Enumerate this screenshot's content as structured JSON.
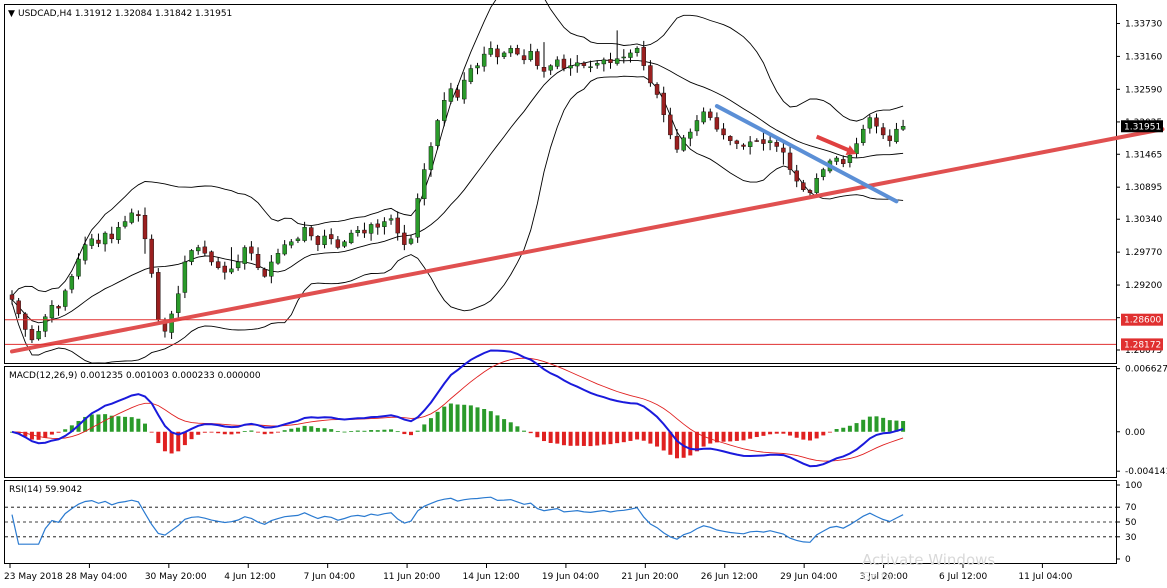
{
  "chart_data": [
    {
      "type": "candlestick",
      "title": "USDCAD,H4  1.31912 1.32084 1.31842 1.31951",
      "symbol": "USDCAD",
      "timeframe": "H4",
      "ohlc_last": {
        "open": 1.31912,
        "high": 1.32084,
        "low": 1.31842,
        "close": 1.31951
      },
      "ylim": [
        1.2785,
        1.3405
      ],
      "y_ticks": [
        "1.33730",
        "1.33160",
        "1.32590",
        "1.32025",
        "1.31465",
        "1.30895",
        "1.30340",
        "1.29770",
        "1.29200",
        "1.28635",
        "1.28075"
      ],
      "y_tick_values": [
        1.3373,
        1.3316,
        1.3259,
        1.32025,
        1.31465,
        1.30895,
        1.3034,
        1.2977,
        1.292,
        1.28635,
        1.28075
      ],
      "price_tag": "1.31951",
      "horizontal_levels": [
        {
          "value": 1.286,
          "label": "1.28600",
          "color": "#e03030"
        },
        {
          "value": 1.28172,
          "label": "1.28172",
          "color": "#e03030"
        }
      ],
      "trendlines": [
        {
          "name": "rising support",
          "color": "#e05050",
          "from": [
            0,
            1.2805
          ],
          "to": [
            173,
            1.319
          ]
        },
        {
          "name": "falling channel top",
          "color": "#5b8fd6",
          "from": [
            106,
            1.323
          ],
          "to": [
            133,
            1.3065
          ]
        }
      ],
      "arrow": {
        "color": "#e04040",
        "from": [
          121,
          1.3177
        ],
        "to": [
          127,
          1.3147
        ]
      },
      "bands_indicator": "Bollinger Bands",
      "close_series": [
        1.2895,
        1.287,
        1.2843,
        1.2825,
        1.284,
        1.2865,
        1.2885,
        1.288,
        1.291,
        1.2935,
        1.2965,
        1.299,
        1.3,
        1.2992,
        1.301,
        1.3,
        1.302,
        1.303,
        1.3045,
        1.304,
        1.3,
        1.294,
        1.286,
        1.284,
        1.287,
        1.2905,
        1.296,
        1.298,
        1.2985,
        1.2975,
        1.296,
        1.295,
        1.2942,
        1.2948,
        1.296,
        1.2985,
        1.2975,
        1.295,
        1.2935,
        1.296,
        1.2975,
        1.299,
        1.2995,
        1.3,
        1.302,
        1.3005,
        1.299,
        1.3005,
        1.3,
        1.2985,
        1.2995,
        1.301,
        1.3015,
        1.301,
        1.3025,
        1.302,
        1.303,
        1.3035,
        1.301,
        1.299,
        1.3,
        1.307,
        1.312,
        1.316,
        1.3205,
        1.324,
        1.326,
        1.3245,
        1.3275,
        1.3295,
        1.33,
        1.332,
        1.333,
        1.3315,
        1.3322,
        1.333,
        1.332,
        1.331,
        1.3325,
        1.33,
        1.329,
        1.33,
        1.331,
        1.3295,
        1.33,
        1.3305,
        1.33,
        1.3298,
        1.3304,
        1.331,
        1.3305,
        1.3312,
        1.3315,
        1.3322,
        1.333,
        1.33,
        1.327,
        1.325,
        1.3215,
        1.318,
        1.3155,
        1.3175,
        1.3185,
        1.3205,
        1.322,
        1.321,
        1.319,
        1.318,
        1.317,
        1.3165,
        1.316,
        1.3168,
        1.317,
        1.3165,
        1.317,
        1.316,
        1.315,
        1.312,
        1.31,
        1.3085,
        1.308,
        1.3105,
        1.312,
        1.3135,
        1.314,
        1.313,
        1.3145,
        1.3165,
        1.319,
        1.321,
        1.3195,
        1.318,
        1.317,
        1.319,
        1.3195
      ]
    },
    {
      "type": "macd",
      "title": "MACD(12,26,9) 0.001235 0.001003 0.000233 0.000000",
      "params": "12,26,9",
      "values": [
        0.001235,
        0.001003,
        0.000233,
        0.0
      ],
      "y_ticks": [
        "0.006627",
        "0.00",
        "-0.004141"
      ],
      "ylim": [
        -0.00475,
        0.0068
      ],
      "series": [
        {
          "name": "MACD",
          "color": "#1a1adc"
        },
        {
          "name": "Signal",
          "color": "#e02020"
        },
        {
          "name": "Histogram",
          "color": "#2a9a2a",
          "negative_color": "#e02020"
        }
      ]
    },
    {
      "type": "line",
      "title": "RSI(14) 59.9042",
      "params": "14",
      "value": 59.9042,
      "y_ticks": [
        "100",
        "70",
        "50",
        "30",
        "0"
      ],
      "levels": [
        70,
        50,
        30
      ],
      "ylim": [
        0,
        100
      ],
      "series": [
        {
          "name": "RSI",
          "color": "#2a7ad0"
        }
      ]
    }
  ],
  "time_axis": [
    "23 May 2018",
    "28 May 04:00",
    "30 May 20:00",
    "4 Jun 12:00",
    "7 Jun 04:00",
    "11 Jun 20:00",
    "14 Jun 12:00",
    "19 Jun 04:00",
    "21 Jun 20:00",
    "26 Jun 12:00",
    "29 Jun 04:00",
    "3 Jul 20:00",
    "6 Jul 12:00",
    "11 Jul 04:00"
  ],
  "watermark": {
    "line1": "Activate Windows",
    "line2": "Go to"
  },
  "colors": {
    "bull": "#2a9a2a",
    "bear": "#9a2020",
    "wick": "#000000",
    "bands": "#000000",
    "background": "#ffffff"
  }
}
